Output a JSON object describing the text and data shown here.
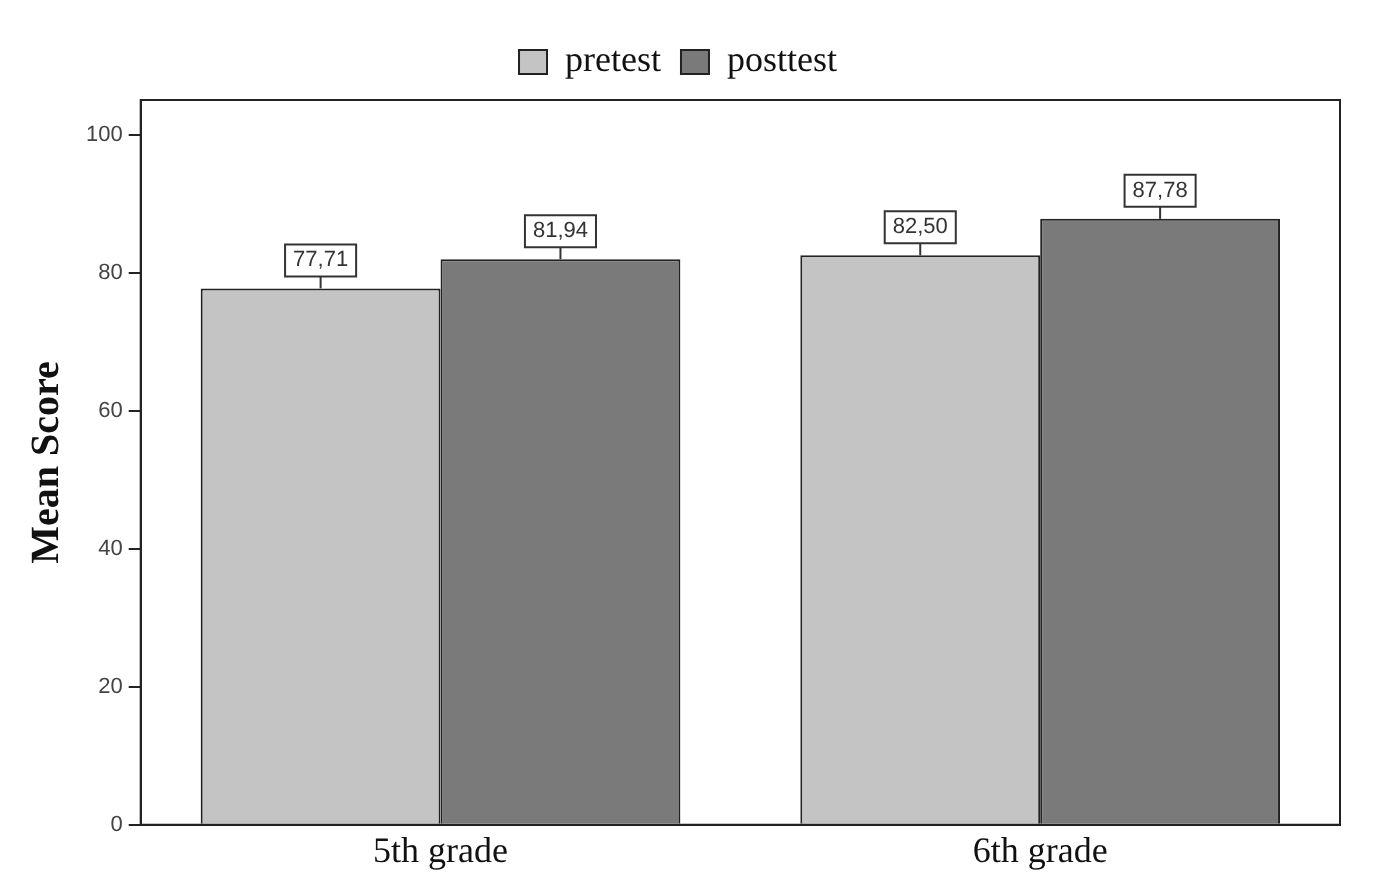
{
  "chart_data": {
    "type": "bar",
    "ylabel": "Mean Score",
    "categories": [
      "5th grade",
      "6th grade"
    ],
    "series": [
      {
        "name": "pretest",
        "color": "#c4c4c4",
        "values": [
          77.71,
          82.5
        ],
        "value_labels": [
          "77,71",
          "82,50"
        ]
      },
      {
        "name": "posttest",
        "color": "#7a7a7a",
        "values": [
          81.94,
          87.78
        ],
        "value_labels": [
          "81,94",
          "87,78"
        ]
      }
    ],
    "ylim": [
      0,
      105
    ],
    "yticks": [
      0,
      20,
      40,
      60,
      80,
      100
    ],
    "grid": false,
    "legend": "top"
  }
}
